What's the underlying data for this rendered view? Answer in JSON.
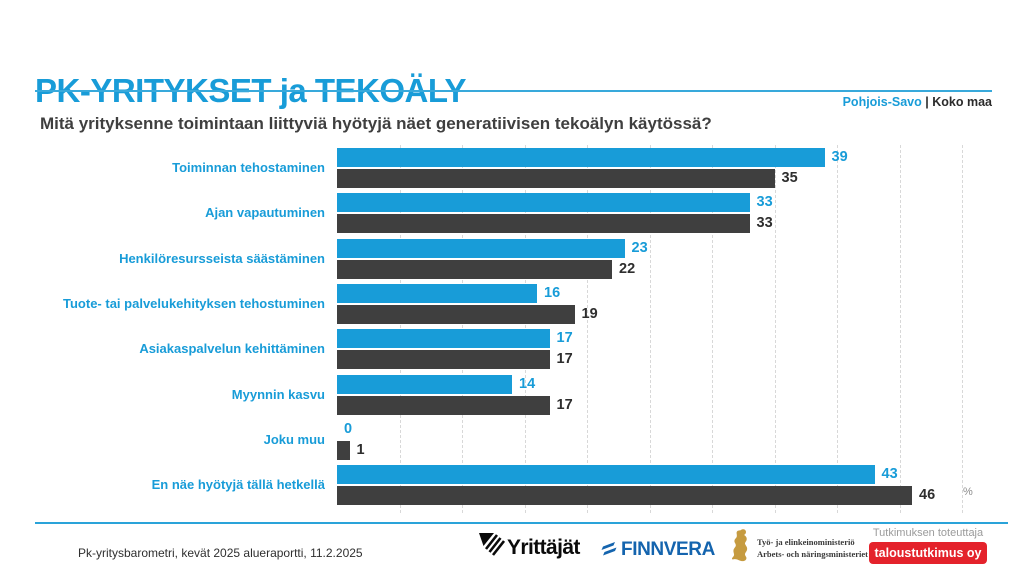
{
  "header": {
    "title": "PK-YRITYKSET ja TEKOÄLY",
    "region_label": "Pohjois-Savo",
    "separator": "|",
    "country_label": "Koko maa"
  },
  "question": "Mitä yrityksenne toimintaan liittyviä hyötyjä näet generatiivisen tekoälyn käytössä?",
  "chart_data": {
    "type": "bar",
    "orientation": "horizontal",
    "title": "Mitä yrityksenne toimintaan liittyviä hyötyjä näet generatiivisen tekoälyn käytössä?",
    "categories": [
      "Toiminnan tehostaminen",
      "Ajan vapautuminen",
      "Henkilöresursseista säästäminen",
      "Tuote- tai palvelukehityksen tehostuminen",
      "Asiakaspalvelun kehittäminen",
      "Myynnin kasvu",
      "Joku muu",
      "En näe hyötyjä tällä hetkellä"
    ],
    "series": [
      {
        "name": "Pohjois-Savo",
        "color": "#189CD8",
        "values": [
          39,
          33,
          23,
          16,
          17,
          14,
          0,
          43
        ]
      },
      {
        "name": "Koko maa",
        "color": "#3F3F3F",
        "values": [
          35,
          33,
          22,
          19,
          17,
          17,
          1,
          46
        ]
      }
    ],
    "xlim": [
      0,
      50
    ],
    "gridline_step": 5,
    "grid": "dashed-vertical",
    "unit_label": "%",
    "legend_position": "top-right",
    "value_labels": "end-of-bar"
  },
  "footer": {
    "report": "Pk-yritysbarometri, kevät 2025 alueraportti, 11.2.2025",
    "logos": {
      "yrittajat": "Yrittäjät",
      "finnvera": "FINNVERA",
      "ministry_line1": "Työ- ja elinkeinoministeriö",
      "ministry_line2": "Arbets- och näringsministeriet"
    },
    "research": {
      "label": "Tutkimuksen toteuttaja",
      "company": "taloustutkimus oy"
    }
  },
  "palette": {
    "accent_blue": "#189CD8",
    "dark_gray": "#3F3F3F",
    "finnvera_blue": "#1464AE",
    "ministry_gold": "#C69B40",
    "badge_red": "#E4222B",
    "gridline_gray": "#D8D8D8"
  }
}
